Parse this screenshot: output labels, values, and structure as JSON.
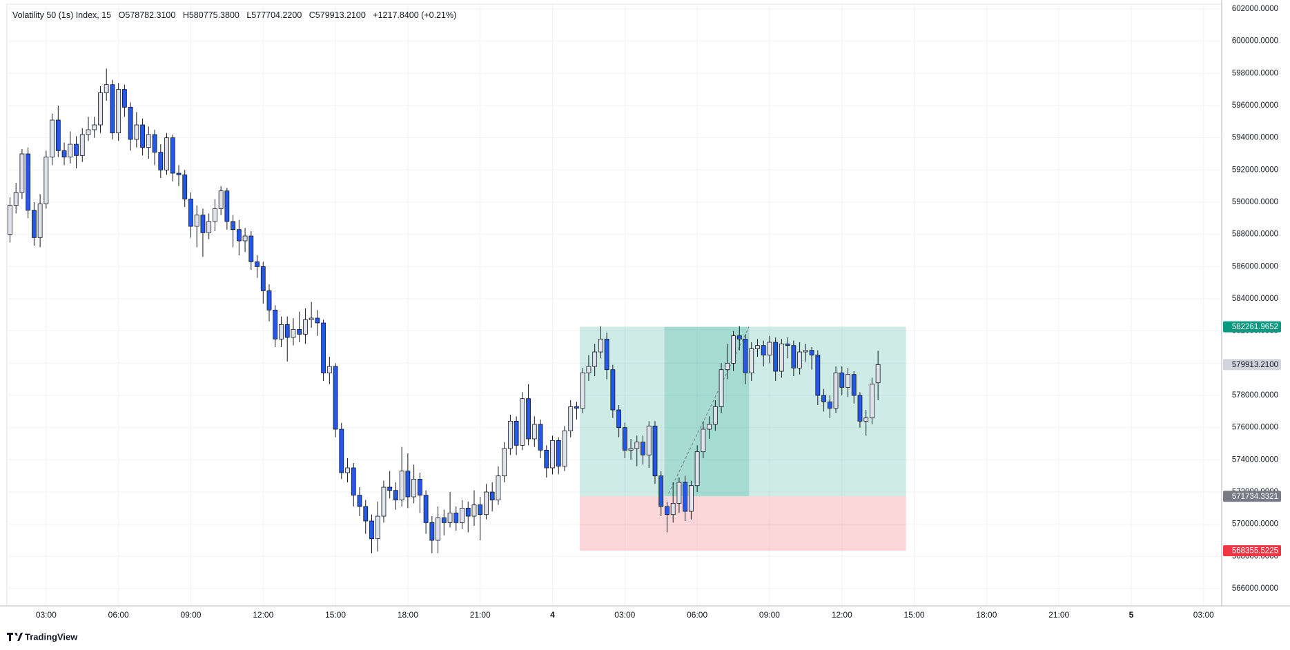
{
  "chart_data": {
    "type": "candlestick",
    "header": {
      "symbol": "Volatility 50 (1s) Index, 15",
      "open": "O578782.3100",
      "high": "H580775.3800",
      "low": "L577704.2200",
      "close": "C579913.2100",
      "change": "+1217.8400 (+0.21%)"
    },
    "branding": "TradingView",
    "up_color": "#e0e3eb",
    "down_color": "#2458e6",
    "border_color": "#131722",
    "grid": true,
    "xlim": [
      1.43,
      51.75
    ],
    "ylim": [
      564930,
      602300
    ],
    "xticks": [
      {
        "value": 3,
        "label": "03:00"
      },
      {
        "value": 6,
        "label": "06:00"
      },
      {
        "value": 9,
        "label": "09:00"
      },
      {
        "value": 12,
        "label": "12:00"
      },
      {
        "value": 15,
        "label": "15:00"
      },
      {
        "value": 18,
        "label": "18:00"
      },
      {
        "value": 21,
        "label": "21:00"
      },
      {
        "value": 24,
        "label": "4"
      },
      {
        "value": 27,
        "label": "03:00"
      },
      {
        "value": 30,
        "label": "06:00"
      },
      {
        "value": 33,
        "label": "09:00"
      },
      {
        "value": 36,
        "label": "12:00"
      },
      {
        "value": 39,
        "label": "15:00"
      },
      {
        "value": 42,
        "label": "18:00"
      },
      {
        "value": 45,
        "label": "21:00"
      },
      {
        "value": 48,
        "label": "5"
      },
      {
        "value": 51,
        "label": "03:00"
      }
    ],
    "yticks": [
      {
        "value": 566000,
        "label": "566000.0000"
      },
      {
        "value": 568000,
        "label": "568000.0000"
      },
      {
        "value": 570000,
        "label": "570000.0000"
      },
      {
        "value": 572000,
        "label": "572000.0000"
      },
      {
        "value": 574000,
        "label": "574000.0000"
      },
      {
        "value": 576000,
        "label": "576000.0000"
      },
      {
        "value": 578000,
        "label": "578000.0000"
      },
      {
        "value": 580000,
        "label": "580000.0000"
      },
      {
        "value": 582000,
        "label": "582000.0000"
      },
      {
        "value": 584000,
        "label": "584000.0000"
      },
      {
        "value": 586000,
        "label": "586000.0000"
      },
      {
        "value": 588000,
        "label": "588000.0000"
      },
      {
        "value": 590000,
        "label": "590000.0000"
      },
      {
        "value": 592000,
        "label": "592000.0000"
      },
      {
        "value": 594000,
        "label": "594000.0000"
      },
      {
        "value": 596000,
        "label": "596000.0000"
      },
      {
        "value": 598000,
        "label": "598000.0000"
      },
      {
        "value": 600000,
        "label": "600000.0000"
      },
      {
        "value": 602000,
        "label": "602000.0000"
      }
    ],
    "position": {
      "x_start": 25.13,
      "x_end": 38.66,
      "active_start": 28.64,
      "active_end": 32.15,
      "profit_color": "#089981",
      "loss_color": "#f23645",
      "target": {
        "value": 582261.9652,
        "label": "582261.9652",
        "color": "#089981"
      },
      "entry": {
        "value": 571734.3321,
        "label": "571734.3321",
        "color": "#787b86"
      },
      "stop": {
        "value": 568355.5225,
        "label": "568355.5225",
        "color": "#f23645"
      }
    },
    "last_price": {
      "value": 579913.21,
      "label": "579913.2100",
      "color": "#d1d4dc"
    },
    "x": [
      1.5,
      1.75,
      2,
      2.25,
      2.5,
      2.75,
      3,
      3.25,
      3.5,
      3.75,
      4,
      4.25,
      4.5,
      4.75,
      5,
      5.25,
      5.5,
      5.75,
      6,
      6.25,
      6.5,
      6.75,
      7,
      7.25,
      7.5,
      7.75,
      8,
      8.25,
      8.5,
      8.75,
      9,
      9.25,
      9.5,
      9.75,
      10,
      10.25,
      10.5,
      10.75,
      11,
      11.25,
      11.5,
      11.75,
      12,
      12.25,
      12.5,
      12.75,
      13,
      13.25,
      13.5,
      13.75,
      14,
      14.25,
      14.5,
      14.75,
      15,
      15.25,
      15.5,
      15.75,
      16,
      16.25,
      16.5,
      16.75,
      17,
      17.25,
      17.5,
      17.75,
      18,
      18.25,
      18.5,
      18.75,
      19,
      19.25,
      19.5,
      19.75,
      20,
      20.25,
      20.5,
      20.75,
      21,
      21.25,
      21.5,
      21.75,
      22,
      22.25,
      22.5,
      22.75,
      23,
      23.25,
      23.5,
      23.75,
      24,
      24.25,
      24.5,
      24.75,
      25,
      25.25,
      25.5,
      25.75,
      26,
      26.25,
      26.5,
      26.75,
      27,
      27.25,
      27.5,
      27.75,
      28,
      28.25,
      28.5,
      28.75,
      29,
      29.25,
      29.5,
      29.75,
      30,
      30.25,
      30.5,
      30.75,
      31,
      31.25,
      31.5,
      31.75,
      32,
      32.25,
      32.5,
      32.75,
      33,
      33.25,
      33.5,
      33.75,
      34,
      34.25,
      34.5,
      34.75,
      35,
      35.25,
      35.5,
      35.75,
      36,
      36.25,
      36.5,
      36.75,
      37,
      37.25,
      37.5
    ],
    "open": [
      588000,
      589800,
      590600,
      593000,
      589500,
      587800,
      589900,
      592800,
      595100,
      593200,
      592800,
      593600,
      592900,
      594200,
      594500,
      594800,
      596800,
      597300,
      594300,
      597000,
      595900,
      593900,
      594800,
      593400,
      594200,
      593100,
      592000,
      594000,
      591800,
      591700,
      590200,
      588500,
      589200,
      588100,
      588800,
      589600,
      590700,
      588800,
      588300,
      587600,
      587900,
      586300,
      586000,
      584500,
      583300,
      581500,
      582400,
      581600,
      582100,
      581800,
      582700,
      582800,
      582500,
      579400,
      579800,
      575900,
      573200,
      573500,
      571800,
      571100,
      570200,
      569100,
      570500,
      572300,
      572100,
      571500,
      573300,
      571700,
      572800,
      571800,
      570100,
      569000,
      570400,
      570100,
      570700,
      570100,
      571000,
      570500,
      571200,
      570600,
      572000,
      571500,
      573000,
      574700,
      576400,
      574900,
      577800,
      575300,
      576200,
      574600,
      573500,
      575200,
      573600,
      575800,
      577300,
      577200,
      579400,
      579800,
      580700,
      581500,
      579600,
      577100,
      576000,
      574600,
      574700,
      575100,
      574300,
      576100,
      573000,
      571100,
      570600,
      571300,
      572600,
      570800,
      572400,
      574500,
      575900,
      576200,
      577300,
      579600,
      580000,
      581700,
      581500,
      579400,
      580900,
      581100,
      580500,
      581300,
      579500,
      581200,
      581100,
      579700,
      580700,
      580800,
      580500,
      578000,
      577600,
      577200,
      579400,
      578500,
      579300,
      578000,
      576400,
      576600,
      578782.31
    ],
    "high": [
      590300,
      591200,
      593300,
      593400,
      590000,
      590500,
      593200,
      595500,
      596000,
      593700,
      594400,
      594100,
      594600,
      595300,
      595300,
      597200,
      598300,
      597600,
      597400,
      597300,
      596200,
      595600,
      595200,
      594700,
      594500,
      593600,
      594300,
      594200,
      592300,
      592000,
      590600,
      589800,
      589600,
      589300,
      590200,
      591000,
      590900,
      589200,
      588900,
      588400,
      588200,
      586700,
      586300,
      584900,
      583600,
      582900,
      582900,
      582800,
      583200,
      583400,
      583800,
      583300,
      582700,
      580400,
      580000,
      576300,
      574100,
      573800,
      572300,
      571500,
      570600,
      571400,
      572700,
      573300,
      572600,
      574800,
      574400,
      573700,
      573200,
      572100,
      570500,
      571100,
      570900,
      572000,
      571100,
      571500,
      571400,
      572100,
      571700,
      572500,
      572600,
      573600,
      575100,
      576800,
      576700,
      578200,
      578700,
      576700,
      576500,
      574900,
      575500,
      575400,
      576100,
      577700,
      577600,
      579700,
      580500,
      581200,
      582300,
      581900,
      579900,
      577400,
      576300,
      575300,
      575500,
      575500,
      576400,
      576400,
      573300,
      571400,
      572600,
      572900,
      573000,
      572700,
      574900,
      576400,
      576700,
      577700,
      580000,
      581200,
      582000,
      582300,
      581800,
      581300,
      581500,
      581400,
      581700,
      581600,
      581500,
      581600,
      581400,
      581300,
      581200,
      581000,
      580800,
      578400,
      578000,
      579800,
      579800,
      579700,
      579500,
      578200,
      577100,
      579100,
      580775.38
    ],
    "low": [
      587500,
      589300,
      590200,
      589000,
      587300,
      587200,
      589600,
      592300,
      592800,
      592300,
      592400,
      592100,
      592500,
      593800,
      594000,
      594300,
      596300,
      593900,
      593800,
      595300,
      593200,
      593400,
      592900,
      592700,
      592300,
      591500,
      591700,
      591300,
      591000,
      589700,
      587800,
      587200,
      586600,
      587700,
      588200,
      589200,
      588300,
      587200,
      586700,
      586900,
      585800,
      585300,
      583700,
      582600,
      581000,
      581000,
      580100,
      581100,
      581300,
      581200,
      582200,
      581700,
      578900,
      578700,
      575400,
      572800,
      572600,
      571100,
      570500,
      569400,
      568200,
      568300,
      570100,
      571600,
      570900,
      571100,
      571000,
      571300,
      570700,
      569400,
      568200,
      568200,
      569300,
      569800,
      569600,
      569700,
      569500,
      569900,
      569000,
      570300,
      570800,
      571200,
      572600,
      574300,
      574300,
      574600,
      574900,
      574800,
      574100,
      572900,
      573100,
      573100,
      573300,
      575400,
      576500,
      576900,
      578900,
      579200,
      580300,
      579000,
      576600,
      575400,
      574100,
      574000,
      573600,
      573700,
      573500,
      572500,
      570500,
      569500,
      570100,
      570700,
      570200,
      570300,
      572000,
      574100,
      575300,
      575800,
      576900,
      579000,
      579500,
      580800,
      578700,
      578900,
      580400,
      579800,
      580000,
      578900,
      579100,
      580300,
      579200,
      579300,
      580100,
      579600,
      577400,
      577000,
      576600,
      576900,
      578000,
      577900,
      577500,
      576000,
      575500,
      576200,
      577704.22
    ],
    "close": [
      589800,
      590600,
      593000,
      589500,
      587800,
      589900,
      592800,
      595100,
      593200,
      592800,
      593600,
      592900,
      594200,
      594500,
      594800,
      596800,
      597300,
      594300,
      597000,
      595900,
      593900,
      594800,
      593400,
      594200,
      593100,
      592000,
      594000,
      591800,
      591700,
      590200,
      588500,
      589200,
      588100,
      588800,
      589600,
      590700,
      588800,
      588300,
      587600,
      587900,
      586300,
      586000,
      584500,
      583300,
      581500,
      582400,
      581600,
      582100,
      581800,
      582700,
      582800,
      582500,
      579400,
      579800,
      575900,
      573200,
      573500,
      571800,
      571100,
      570200,
      569100,
      570500,
      572300,
      572100,
      571500,
      573300,
      571700,
      572800,
      571800,
      570100,
      569000,
      570400,
      570100,
      570700,
      570100,
      571000,
      570500,
      571200,
      570600,
      572000,
      571500,
      573000,
      574700,
      576400,
      574900,
      577800,
      575300,
      576200,
      574600,
      573500,
      575200,
      573600,
      575800,
      577300,
      577200,
      579400,
      579800,
      580700,
      581500,
      579600,
      577100,
      576000,
      574600,
      574700,
      575100,
      574300,
      576100,
      573000,
      571100,
      570600,
      571300,
      572600,
      570800,
      572400,
      574500,
      575900,
      576200,
      577300,
      579600,
      580000,
      581700,
      581500,
      579400,
      580900,
      581100,
      580500,
      581300,
      579500,
      581200,
      581100,
      579700,
      580700,
      580800,
      580500,
      578000,
      577600,
      577200,
      579400,
      578500,
      579300,
      578000,
      576400,
      576600,
      578695.37,
      579913.21
    ]
  }
}
